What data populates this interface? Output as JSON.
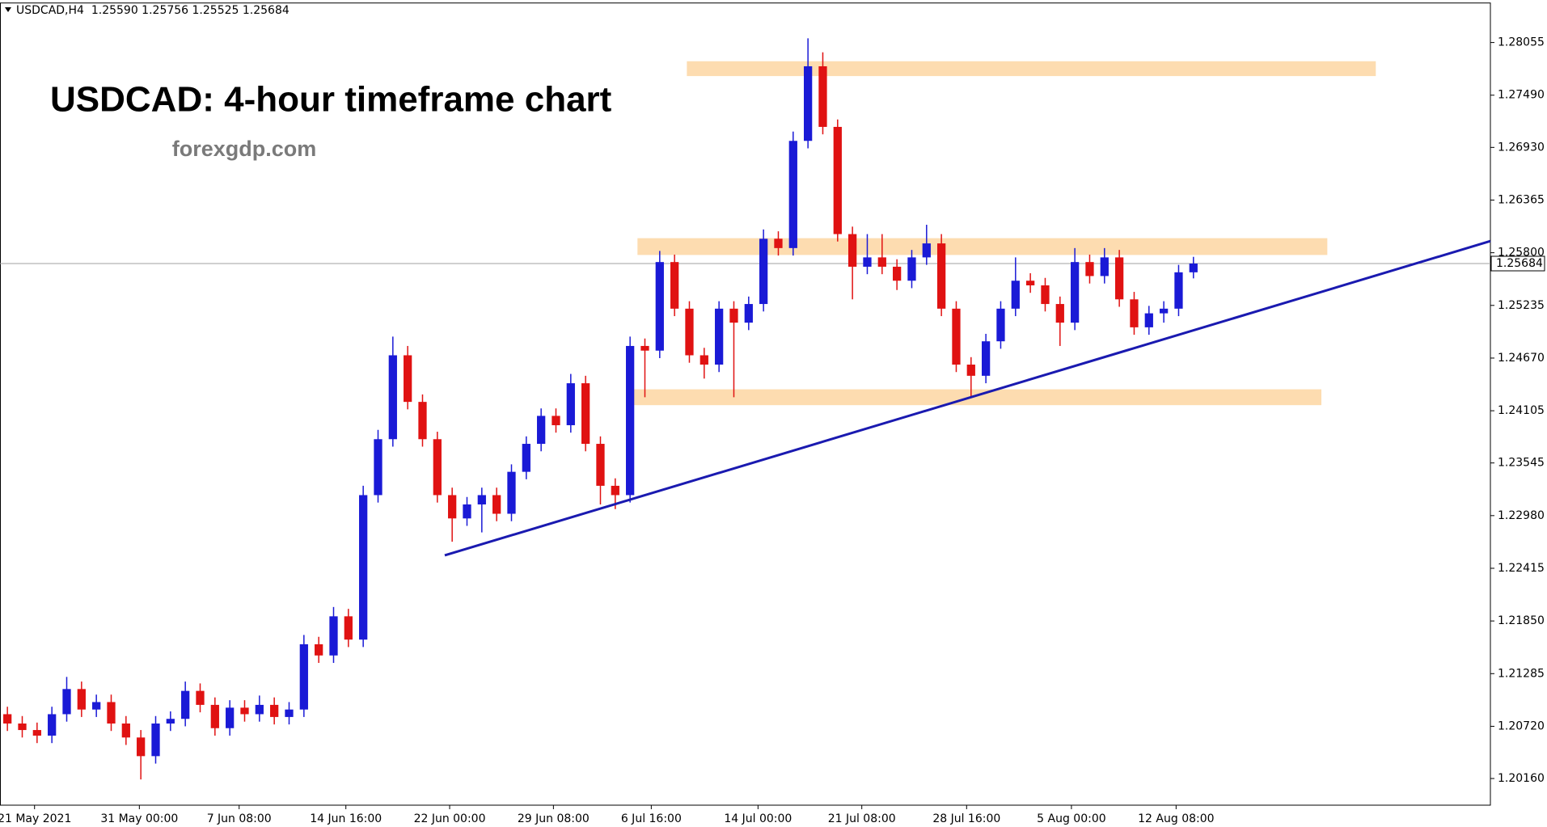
{
  "chart_data": {
    "type": "candlestick",
    "header": "USDCAD,H4  1.25590 1.25756 1.25525 1.25684",
    "title": "USDCAD: 4-hour timeframe chart",
    "subtitle": "forexgdp.com",
    "bull_color": "#1a1ad6",
    "bear_color": "#e01212",
    "open": [
      1.2085,
      1.2075,
      1.2068,
      1.2062,
      1.2085,
      1.2112,
      1.209,
      1.2098,
      1.2075,
      1.206,
      1.204,
      1.2075,
      1.208,
      1.211,
      1.2095,
      1.207,
      1.2092,
      1.2085,
      1.2095,
      1.2082,
      1.209,
      1.216,
      1.2148,
      1.219,
      1.2165,
      1.232,
      1.238,
      1.247,
      1.242,
      1.238,
      1.232,
      1.2295,
      1.231,
      1.232,
      1.23,
      1.2345,
      1.2375,
      1.2405,
      1.2395,
      1.244,
      1.2375,
      1.233,
      1.232,
      1.248,
      1.2475,
      1.257,
      1.252,
      1.247,
      1.246,
      1.252,
      1.2505,
      1.2525,
      1.2595,
      1.2585,
      1.27,
      1.278,
      1.2715,
      1.26,
      1.2565,
      1.2575,
      1.2565,
      1.255,
      1.2575,
      1.259,
      1.252,
      1.246,
      1.2448,
      1.2485,
      1.252,
      1.255,
      1.2545,
      1.2525,
      1.2505,
      1.257,
      1.2555,
      1.2575,
      1.253,
      1.25,
      1.2515,
      1.252,
      1.2559
    ],
    "high": [
      1.2093,
      1.2083,
      1.2076,
      1.2093,
      1.2125,
      1.212,
      1.2106,
      1.2106,
      1.2083,
      1.2068,
      1.2083,
      1.2088,
      1.212,
      1.2118,
      1.2103,
      1.21,
      1.21,
      1.2105,
      1.2103,
      1.2098,
      1.217,
      1.2168,
      1.22,
      1.2198,
      1.233,
      1.239,
      1.249,
      1.248,
      1.2428,
      1.2388,
      1.2328,
      1.2318,
      1.2328,
      1.2328,
      1.2353,
      1.2383,
      1.2413,
      1.2413,
      1.245,
      1.2448,
      1.2383,
      1.2338,
      1.249,
      1.2488,
      1.2582,
      1.2578,
      1.2528,
      1.2478,
      1.2528,
      1.2528,
      1.2533,
      1.2605,
      1.2603,
      1.271,
      1.281,
      1.2795,
      1.2723,
      1.2608,
      1.26,
      1.26,
      1.2573,
      1.2583,
      1.261,
      1.26,
      1.2528,
      1.2468,
      1.2493,
      1.2528,
      1.2575,
      1.2558,
      1.2553,
      1.2533,
      1.2585,
      1.2578,
      1.2585,
      1.2583,
      1.2538,
      1.2523,
      1.2528,
      1.2567,
      1.25756
    ],
    "low": [
      1.2067,
      1.206,
      1.2054,
      1.2054,
      1.2077,
      1.2082,
      1.2082,
      1.2067,
      1.2052,
      1.2015,
      1.2032,
      1.2067,
      1.2072,
      1.2087,
      1.2062,
      1.2062,
      1.2077,
      1.2077,
      1.2074,
      1.2074,
      1.2082,
      1.214,
      1.214,
      1.2157,
      1.2157,
      1.2312,
      1.2372,
      1.2412,
      1.2372,
      1.2312,
      1.227,
      1.2287,
      1.228,
      1.2292,
      1.2292,
      1.2337,
      1.2367,
      1.2387,
      1.2387,
      1.2367,
      1.231,
      1.2305,
      1.2312,
      1.2425,
      1.2467,
      1.2512,
      1.2462,
      1.2445,
      1.2452,
      1.2425,
      1.2497,
      1.2517,
      1.2577,
      1.2577,
      1.2692,
      1.2707,
      1.2592,
      1.253,
      1.2557,
      1.2557,
      1.254,
      1.2542,
      1.2567,
      1.2512,
      1.2452,
      1.2425,
      1.244,
      1.2477,
      1.2512,
      1.2537,
      1.2517,
      1.248,
      1.2497,
      1.2547,
      1.2547,
      1.2522,
      1.2492,
      1.2492,
      1.2505,
      1.2512,
      1.25525
    ],
    "close": [
      1.2075,
      1.2068,
      1.2062,
      1.2085,
      1.2112,
      1.209,
      1.2098,
      1.2075,
      1.206,
      1.204,
      1.2075,
      1.208,
      1.211,
      1.2095,
      1.207,
      1.2092,
      1.2085,
      1.2095,
      1.2082,
      1.209,
      1.216,
      1.2148,
      1.219,
      1.2165,
      1.232,
      1.238,
      1.247,
      1.242,
      1.238,
      1.232,
      1.2295,
      1.231,
      1.232,
      1.23,
      1.2345,
      1.2375,
      1.2405,
      1.2395,
      1.244,
      1.2375,
      1.233,
      1.232,
      1.248,
      1.2475,
      1.257,
      1.252,
      1.247,
      1.246,
      1.252,
      1.2505,
      1.2525,
      1.2595,
      1.2585,
      1.27,
      1.278,
      1.2715,
      1.26,
      1.2565,
      1.2575,
      1.2565,
      1.255,
      1.2575,
      1.259,
      1.252,
      1.246,
      1.2448,
      1.2485,
      1.252,
      1.255,
      1.2545,
      1.2525,
      1.2505,
      1.257,
      1.2555,
      1.2575,
      1.253,
      1.25,
      1.2515,
      1.252,
      1.2559,
      1.25684
    ],
    "xlim": [
      -0.5,
      100.03
    ],
    "xticks": [
      {
        "value": 1.83,
        "label": "21 May 2021"
      },
      {
        "value": 8.9,
        "label": "31 May 00:00"
      },
      {
        "value": 15.63,
        "label": "7 Jun 08:00"
      },
      {
        "value": 22.83,
        "label": "14 Jun 16:00"
      },
      {
        "value": 29.83,
        "label": "22 Jun 00:00"
      },
      {
        "value": 36.83,
        "label": "29 Jun 08:00"
      },
      {
        "value": 43.43,
        "label": "6 Jul 16:00"
      },
      {
        "value": 50.63,
        "label": "14 Jul 00:00"
      },
      {
        "value": 57.63,
        "label": "21 Jul 08:00"
      },
      {
        "value": 64.7,
        "label": "28 Jul 16:00"
      },
      {
        "value": 71.77,
        "label": "5 Aug 00:00"
      },
      {
        "value": 78.83,
        "label": "12 Aug 08:00"
      }
    ],
    "ylim": [
      1.19874,
      1.28479
    ],
    "yticks": [
      1.28055,
      {
        "value": 1.2749,
        "label": "1.27490"
      },
      {
        "value": 1.2693,
        "label": "1.26930"
      },
      1.26365,
      {
        "value": 1.258,
        "label": "1.25800"
      },
      1.25235,
      {
        "value": 1.2467,
        "label": "1.24670"
      },
      1.24105,
      1.23545,
      {
        "value": 1.2298,
        "label": "1.22980"
      },
      1.22415,
      {
        "value": 1.2185,
        "label": "1.21850"
      },
      1.21285,
      {
        "value": 1.2072,
        "label": "1.20720"
      },
      {
        "value": 1.2016,
        "label": "1.20160"
      }
    ],
    "current_price": 1.25684,
    "zone_color": "#fddcb0",
    "zones": [
      {
        "x": [
          45.83,
          92.3
        ],
        "y": [
          1.27695,
          1.27854
        ]
      },
      {
        "x": [
          42.5,
          89.03
        ],
        "y": [
          1.25776,
          1.25956
        ]
      },
      {
        "x": [
          42.03,
          88.63
        ],
        "y": [
          1.24165,
          1.24335
        ]
      }
    ],
    "trendline": {
      "x": [
        29.5,
        100.03
      ],
      "y": [
        1.22554,
        1.25925
      ],
      "color": "#1a1ab0"
    }
  }
}
